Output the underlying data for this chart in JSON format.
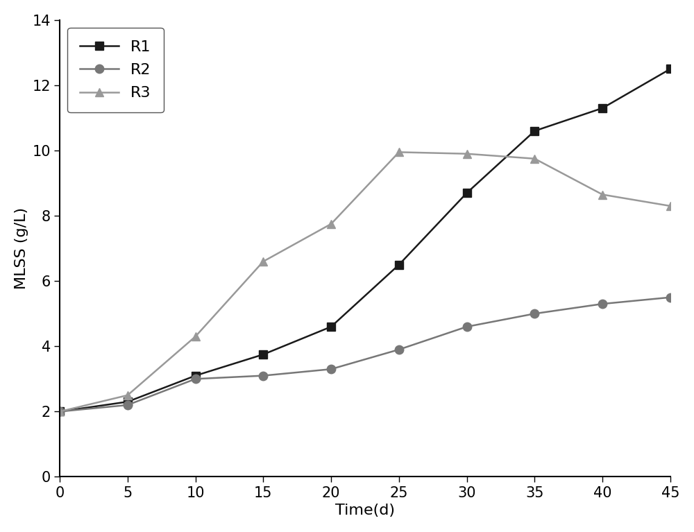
{
  "title": "",
  "xlabel": "Time(d)",
  "ylabel": "MLSS (g/L)",
  "xlim": [
    0,
    45
  ],
  "ylim": [
    0,
    14
  ],
  "xticks": [
    0,
    5,
    10,
    15,
    20,
    25,
    30,
    35,
    40,
    45
  ],
  "yticks": [
    0,
    2,
    4,
    6,
    8,
    10,
    12,
    14
  ],
  "series": [
    {
      "label": "R1",
      "x": [
        0,
        5,
        10,
        15,
        20,
        25,
        30,
        35,
        40,
        45
      ],
      "y": [
        2.0,
        2.3,
        3.1,
        3.75,
        4.6,
        6.5,
        8.7,
        10.6,
        11.3,
        12.5
      ],
      "color": "#1a1a1a",
      "marker": "s",
      "markersize": 9,
      "linewidth": 1.8
    },
    {
      "label": "R2",
      "x": [
        0,
        5,
        10,
        15,
        20,
        25,
        30,
        35,
        40,
        45
      ],
      "y": [
        2.0,
        2.2,
        3.0,
        3.1,
        3.3,
        3.9,
        4.6,
        5.0,
        5.3,
        5.5
      ],
      "color": "#777777",
      "marker": "o",
      "markersize": 9,
      "linewidth": 1.8
    },
    {
      "label": "R3",
      "x": [
        0,
        5,
        10,
        15,
        20,
        25,
        30,
        35,
        40,
        45
      ],
      "y": [
        2.0,
        2.5,
        4.3,
        6.6,
        7.75,
        9.95,
        9.9,
        9.75,
        8.65,
        8.3
      ],
      "color": "#999999",
      "marker": "^",
      "markersize": 9,
      "linewidth": 1.8
    }
  ],
  "legend_loc": "upper left",
  "legend_fontsize": 16,
  "axis_label_fontsize": 16,
  "tick_fontsize": 15,
  "background_color": "#ffffff",
  "figure_facecolor": "#ffffff"
}
